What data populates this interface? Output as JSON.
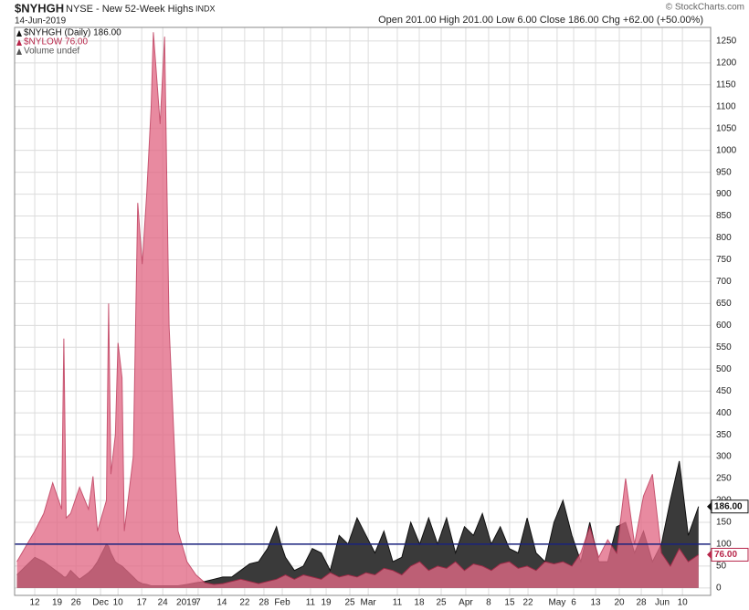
{
  "chart_data": {
    "type": "area",
    "symbol": "$NYHGH",
    "title": "NYSE - New 52-Week Highs",
    "exchange": "INDX",
    "date": "14-Jun-2019",
    "quote": "Open 201.00 High 201.00 Low 6.00 Close 186.00 Chg +62.00 (+50.00%)",
    "credit": "© StockCharts.com",
    "legend": [
      "$NYHGH (Daily) 186.00",
      "$NYLOW 76.00",
      "Volume undef"
    ],
    "x": [
      -4,
      -2,
      0,
      2,
      4,
      6,
      6.5,
      7,
      8,
      10,
      12,
      13,
      14,
      16,
      16.5,
      17,
      18,
      18.6,
      19.5,
      20,
      22,
      23,
      24,
      25,
      26,
      26.5,
      28,
      29,
      30,
      32,
      34,
      36,
      38,
      40,
      42,
      44,
      46,
      48,
      50,
      52,
      54,
      55,
      56,
      58,
      60,
      62,
      64,
      66,
      68,
      70,
      72,
      74,
      76,
      78,
      80,
      82,
      84,
      86,
      88,
      90,
      92,
      94,
      96,
      98,
      100,
      102,
      104,
      106,
      108,
      110,
      112,
      114,
      116,
      118,
      120,
      122,
      124,
      126,
      128,
      130,
      132,
      134,
      136,
      138,
      140,
      142,
      144,
      146,
      148.3
    ],
    "series": [
      {
        "name": "$NYHGH",
        "color": "#3a3a3a",
        "stroke": "#111111",
        "opacity": 1,
        "last_label": "186.00",
        "values": [
          30,
          50,
          70,
          60,
          45,
          30,
          25,
          25,
          40,
          20,
          35,
          45,
          60,
          100,
          95,
          80,
          60,
          55,
          50,
          45,
          25,
          15,
          10,
          8,
          5,
          5,
          5,
          5,
          5,
          5,
          8,
          12,
          15,
          20,
          25,
          25,
          40,
          55,
          60,
          90,
          140,
          100,
          70,
          40,
          50,
          90,
          80,
          40,
          120,
          100,
          160,
          120,
          80,
          130,
          60,
          70,
          150,
          100,
          160,
          100,
          160,
          80,
          140,
          120,
          170,
          100,
          140,
          90,
          80,
          160,
          80,
          60,
          150,
          200,
          120,
          60,
          150,
          60,
          60,
          140,
          150,
          80,
          130,
          60,
          100,
          200,
          290,
          120,
          186
        ]
      },
      {
        "name": "$NYLOW",
        "color": "#e26a86",
        "stroke": "#b8264a",
        "opacity": 0.78,
        "last_label": "76.00",
        "values": [
          60,
          95,
          130,
          170,
          240,
          180,
          570,
          160,
          170,
          230,
          180,
          255,
          130,
          200,
          650,
          260,
          350,
          560,
          480,
          130,
          300,
          880,
          740,
          900,
          1100,
          1270,
          1060,
          1260,
          600,
          130,
          60,
          30,
          12,
          8,
          10,
          15,
          20,
          15,
          10,
          15,
          20,
          25,
          30,
          20,
          30,
          25,
          20,
          35,
          25,
          30,
          25,
          35,
          30,
          45,
          40,
          30,
          50,
          60,
          40,
          50,
          45,
          60,
          40,
          55,
          50,
          40,
          55,
          60,
          45,
          50,
          40,
          60,
          55,
          60,
          50,
          80,
          140,
          70,
          110,
          80,
          250,
          100,
          210,
          260,
          80,
          50,
          90,
          60,
          76
        ]
      }
    ],
    "reference_line": {
      "value": 100,
      "color": "#1a237e"
    },
    "xlim": [
      -4.5,
      151
    ],
    "xticks": [
      {
        "value": 0,
        "label": "12"
      },
      {
        "value": 5,
        "label": "19"
      },
      {
        "value": 9.2,
        "label": "26"
      },
      {
        "value": 14.7,
        "label": "Dec"
      },
      {
        "value": 18.6,
        "label": "10"
      },
      {
        "value": 23.9,
        "label": "17"
      },
      {
        "value": 28.6,
        "label": "24"
      },
      {
        "value": 33.9,
        "label": "2019"
      },
      {
        "value": 36.5,
        "label": "7"
      },
      {
        "value": 41.8,
        "label": "14"
      },
      {
        "value": 46.9,
        "label": "22"
      },
      {
        "value": 51.2,
        "label": "28"
      },
      {
        "value": 55.3,
        "label": "Feb"
      },
      {
        "value": 61.6,
        "label": "11"
      },
      {
        "value": 65.1,
        "label": "19"
      },
      {
        "value": 70.4,
        "label": "25"
      },
      {
        "value": 74.5,
        "label": "Mar"
      },
      {
        "value": 81,
        "label": "11"
      },
      {
        "value": 85.9,
        "label": "18"
      },
      {
        "value": 90.8,
        "label": "25"
      },
      {
        "value": 96.3,
        "label": "Apr"
      },
      {
        "value": 101.4,
        "label": "8"
      },
      {
        "value": 106.1,
        "label": "15"
      },
      {
        "value": 110.2,
        "label": "22"
      },
      {
        "value": 116.7,
        "label": "May"
      },
      {
        "value": 120.4,
        "label": "6"
      },
      {
        "value": 125.3,
        "label": "13"
      },
      {
        "value": 130.6,
        "label": "20"
      },
      {
        "value": 135.5,
        "label": "28"
      },
      {
        "value": 140.2,
        "label": "Jun"
      },
      {
        "value": 144.7,
        "label": "10"
      }
    ],
    "ylim": [
      -17,
      1281
    ],
    "yticks": [
      0,
      50,
      100,
      150,
      200,
      250,
      300,
      350,
      400,
      450,
      500,
      550,
      600,
      650,
      700,
      750,
      800,
      850,
      900,
      950,
      1000,
      1050,
      1100,
      1150,
      1200,
      1250
    ],
    "grid": true
  }
}
